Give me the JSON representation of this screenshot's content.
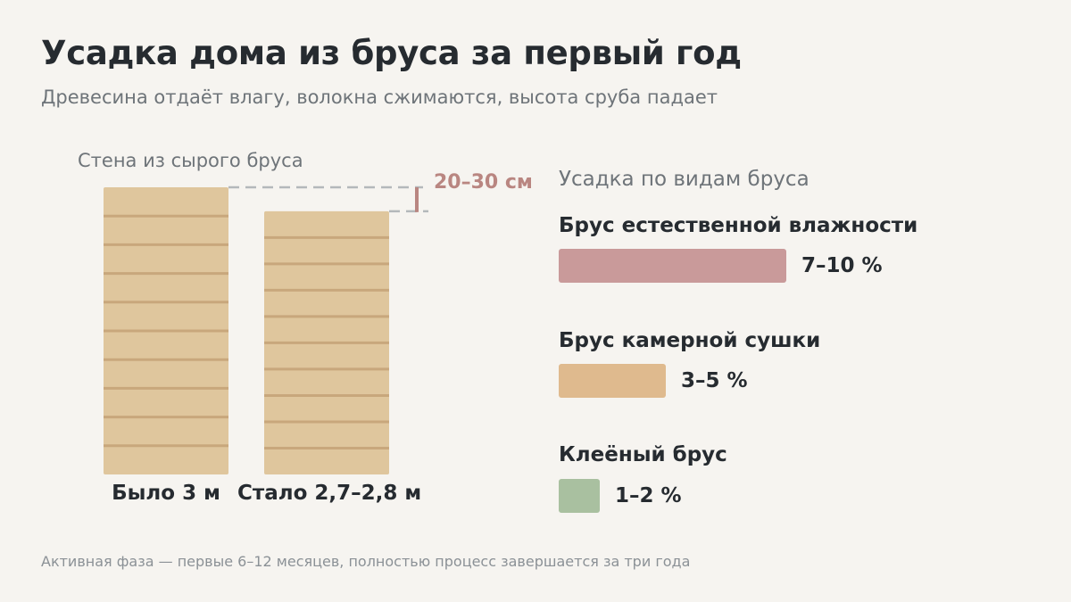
{
  "header": {
    "title": "Усадка дома из бруса за первый год",
    "subtitle": "Древесина отдаёт влагу, волокна сжимаются, высота сруба падает"
  },
  "walls": {
    "label": "Стена из сырого бруса",
    "before_caption": "Было 3 м",
    "after_caption": "Стало 2,7–2,8 м",
    "shrink_label": "20–30 см",
    "before_height_m": 3,
    "after_height_m": 2.75,
    "colors": {
      "wall": "#dfc69d",
      "seam": "#c8a77c",
      "guide": "#b4b8bb",
      "shrink": "#b98681"
    }
  },
  "panel": {
    "title": "Усадка по видам бруса"
  },
  "footnote": "Активная фаза — первые 6–12 месяцев, полностью процесс завершается за три года",
  "chart_data": [
    {
      "type": "bar",
      "title": "Стена из сырого бруса",
      "categories": [
        "Было 3 м",
        "Стало 2,7–2,8 м"
      ],
      "values": [
        3,
        2.75
      ],
      "annotation": "20–30 см"
    },
    {
      "type": "bar",
      "title": "Усадка по видам бруса",
      "orientation": "horizontal",
      "categories": [
        "Брус естественной влажности",
        "Брус камерной сушки",
        "Клеёный брус"
      ],
      "values": [
        10,
        4.7,
        1.8
      ],
      "labels": [
        "7–10 %",
        "3–5 %",
        "1–2 %"
      ],
      "colors": [
        "#c99a9a",
        "#dfba8e",
        "#a9c0a0"
      ]
    }
  ]
}
